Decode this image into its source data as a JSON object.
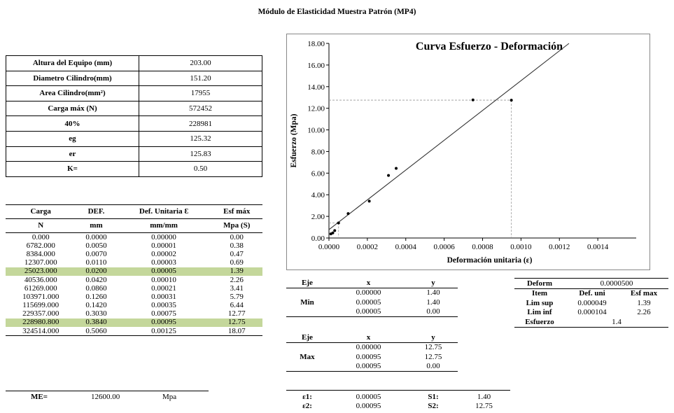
{
  "page": {
    "title": "Módulo de Elasticidad Muestra Patrón (MP4)"
  },
  "properties": [
    {
      "label": "Altura del Equipo (mm)",
      "value": "203.00"
    },
    {
      "label": "Diametro Cilindro(mm)",
      "value": "151.20"
    },
    {
      "label": "Area Cilindro(mm²)",
      "value": "17955"
    },
    {
      "label": "Carga máx (N)",
      "value": "572452"
    },
    {
      "label": "40%",
      "value": "228981"
    },
    {
      "label": "eg",
      "value": "125.32"
    },
    {
      "label": "er",
      "value": "125.83"
    },
    {
      "label": "K=",
      "value": "0.50"
    }
  ],
  "data_table": {
    "headers": [
      "Carga",
      "DEF.",
      "Def. Unitaria Ɛ",
      "Esf máx"
    ],
    "units": [
      "N",
      "mm",
      "mm/mm",
      "Mpa (S)"
    ],
    "rows": [
      [
        "0.000",
        "0.0000",
        "0.00000",
        "0.00"
      ],
      [
        "6782.000",
        "0.0050",
        "0.00001",
        "0.38"
      ],
      [
        "8384.000",
        "0.0070",
        "0.00002",
        "0.47"
      ],
      [
        "12307.000",
        "0.0110",
        "0.00003",
        "0.69"
      ],
      [
        "25023.000",
        "0.0200",
        "0.00005",
        "1.39"
      ],
      [
        "40536.000",
        "0.0420",
        "0.00010",
        "2.26"
      ],
      [
        "61269.000",
        "0.0860",
        "0.00021",
        "3.41"
      ],
      [
        "103971.000",
        "0.1260",
        "0.00031",
        "5.79"
      ],
      [
        "115699.000",
        "0.1420",
        "0.00035",
        "6.44"
      ],
      [
        "229357.000",
        "0.3030",
        "0.00075",
        "12.77"
      ],
      [
        "228980.800",
        "0.3840",
        "0.00095",
        "12.75"
      ],
      [
        "324514.000",
        "0.5060",
        "0.00125",
        "18.07"
      ]
    ],
    "highlight_rows": [
      4,
      10
    ],
    "highlight_color": "#c4d79b"
  },
  "me": {
    "label": "ME=",
    "value": "12600.00",
    "unit": "Mpa"
  },
  "eje_min": {
    "headers": [
      "Eje",
      "x",
      "y"
    ],
    "label": "Min",
    "rows": [
      [
        "0.00000",
        "1.40"
      ],
      [
        "0.00005",
        "1.40"
      ],
      [
        "0.00005",
        "0.00"
      ]
    ]
  },
  "eje_max": {
    "headers": [
      "Eje",
      "x",
      "y"
    ],
    "label": "Max",
    "rows": [
      [
        "0.00000",
        "12.75"
      ],
      [
        "0.00095",
        "12.75"
      ],
      [
        "0.00095",
        "0.00"
      ]
    ]
  },
  "epsilon": [
    {
      "label": "ε1:",
      "x": "0.00005",
      "s_label": "S1:",
      "s": "1.40"
    },
    {
      "label": "ε2:",
      "x": "0.00095",
      "s_label": "S2:",
      "s": "12.75"
    }
  ],
  "deform": {
    "label": "Deform",
    "value": "0.0000500",
    "headers": [
      "Item",
      "Def. uni",
      "Esf max"
    ],
    "rows": [
      {
        "label": "Lim sup",
        "def": "0.000049",
        "esf": "1.39"
      },
      {
        "label": "Lim inf",
        "def": "0.000104",
        "esf": "2.26"
      }
    ],
    "esfuerzo_label": "Esfuerzo",
    "esfuerzo_value": "1.4"
  },
  "chart_data": {
    "type": "scatter",
    "title": "Curva Esfuerzo - Deformación",
    "xlabel": "Deformación unitaria (ε)",
    "ylabel": "Esfuerzo (Mpa)",
    "xlim": [
      0,
      0.0016
    ],
    "ylim": [
      0,
      18
    ],
    "xticks": [
      "0.0000",
      "0.0002",
      "0.0004",
      "0.0006",
      "0.0008",
      "0.0010",
      "0.0012",
      "0.0014"
    ],
    "xtick_values": [
      0,
      0.0002,
      0.0004,
      0.0006,
      0.0008,
      0.001,
      0.0012,
      0.0014
    ],
    "yticks": [
      "0.00",
      "2.00",
      "4.00",
      "6.00",
      "8.00",
      "10.00",
      "12.00",
      "14.00",
      "16.00",
      "18.00"
    ],
    "ytick_values": [
      0,
      2,
      4,
      6,
      8,
      10,
      12,
      14,
      16,
      18
    ],
    "points": [
      {
        "x": 1e-05,
        "y": 0.38
      },
      {
        "x": 2e-05,
        "y": 0.47
      },
      {
        "x": 3e-05,
        "y": 0.69
      },
      {
        "x": 5e-05,
        "y": 1.39
      },
      {
        "x": 0.0001,
        "y": 2.26
      },
      {
        "x": 0.00021,
        "y": 3.41
      },
      {
        "x": 0.00031,
        "y": 5.79
      },
      {
        "x": 0.00035,
        "y": 6.44
      },
      {
        "x": 0.00075,
        "y": 12.77
      },
      {
        "x": 0.00095,
        "y": 12.75
      }
    ],
    "trend_line": {
      "x": [
        0,
        0.00125
      ],
      "y": [
        0.77,
        18.0
      ]
    },
    "guides": [
      {
        "x": 5e-05,
        "y": 1.4
      },
      {
        "x": 0.00095,
        "y": 12.75
      }
    ],
    "grid": false,
    "legend": "none",
    "colors": {
      "points": "#000000",
      "line": "#333333",
      "guides": "#999999",
      "frame": "#888888"
    }
  }
}
